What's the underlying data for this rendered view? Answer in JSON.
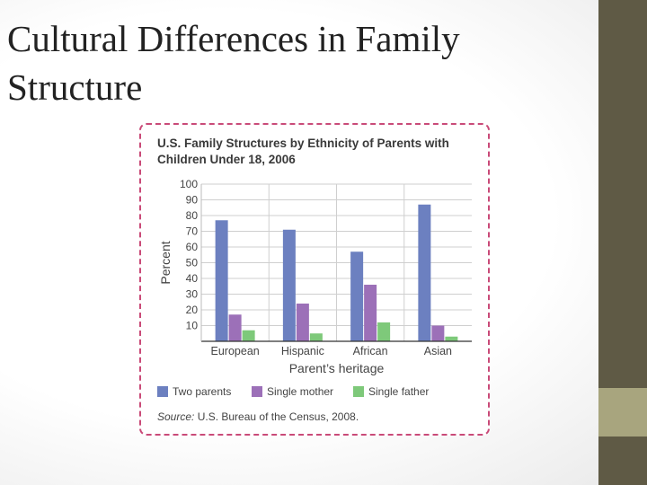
{
  "slide": {
    "title": "Cultural Differences in Family Structure"
  },
  "chart_data": {
    "type": "bar",
    "title": "U.S. Family Structures by Ethnicity of Parents with Children Under 18, 2006",
    "xlabel": "Parent’s heritage",
    "ylabel": "Percent",
    "ylim": [
      0,
      100
    ],
    "yticks": [
      10,
      20,
      30,
      40,
      50,
      60,
      70,
      80,
      90,
      100
    ],
    "grid": true,
    "legend_position": "bottom",
    "categories": [
      "European",
      "Hispanic",
      "African",
      "Asian"
    ],
    "series": [
      {
        "name": "Two parents",
        "color": "#6c80c0",
        "values": [
          77,
          71,
          57,
          87
        ]
      },
      {
        "name": "Single mother",
        "color": "#9c70b8",
        "values": [
          17,
          24,
          36,
          10
        ]
      },
      {
        "name": "Single father",
        "color": "#7ec97a",
        "values": [
          7,
          5,
          12,
          3
        ]
      }
    ],
    "source_label": "Source:",
    "source_text": "U.S. Bureau of the Census, 2008."
  },
  "colors": {
    "sidebar": "#5f5a45",
    "sidebar_accent": "#a8a57e",
    "frame": "#c94a78"
  }
}
